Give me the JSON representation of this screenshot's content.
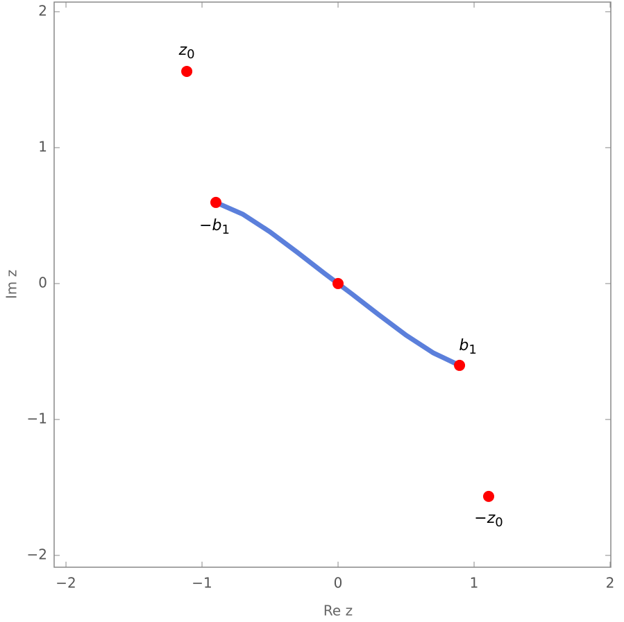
{
  "chart_data": {
    "type": "scatter",
    "xlabel": "Re z",
    "ylabel": "Im z",
    "xlim": [
      -2.087,
      2.005
    ],
    "ylim": [
      -2.087,
      2.071
    ],
    "xticks": [
      {
        "value": -2,
        "label": "−2"
      },
      {
        "value": -1,
        "label": "−1"
      },
      0,
      1,
      2
    ],
    "yticks": [
      {
        "value": -2,
        "label": "−2"
      },
      {
        "value": -1,
        "label": "−1"
      },
      0,
      1,
      2
    ],
    "series": [
      {
        "type": "line",
        "color": "#5b7fdb",
        "x": [
          -0.898,
          -0.7,
          -0.5,
          -0.3,
          -0.1,
          0,
          0.1,
          0.3,
          0.5,
          0.7,
          0.893
        ],
        "values": [
          0.597,
          0.51,
          0.38,
          0.23,
          0.075,
          0,
          -0.075,
          -0.23,
          -0.38,
          -0.51,
          -0.602
        ]
      },
      {
        "type": "scatter",
        "color": "#ff0000",
        "x": [
          -1.112,
          -0.898,
          0,
          0.893,
          1.107
        ],
        "values": [
          1.561,
          0.597,
          0,
          -0.602,
          -1.566
        ],
        "labels": [
          {
            "text": "z",
            "sub": "0"
          },
          {
            "text": "−b",
            "sub": "1"
          },
          null,
          {
            "text": "b",
            "sub": "1"
          },
          {
            "text": "−z",
            "sub": "0"
          }
        ]
      }
    ]
  }
}
